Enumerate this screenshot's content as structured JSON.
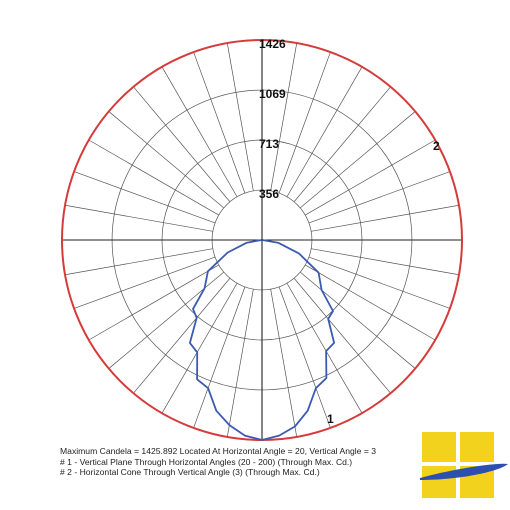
{
  "chart_data": {
    "type": "polar",
    "title": "",
    "radial_ticks": [
      356,
      713,
      1069,
      1426
    ],
    "rmax": 1426,
    "ring_tick_labels": [
      "356",
      "713",
      "1069",
      "1426"
    ],
    "angular_divisions_deg": 10,
    "series": [
      {
        "name": "1",
        "color": "#3b5bb0",
        "note": "Vertical Plane Through Horizontal Angles (20 - 200)",
        "angles_deg": [
          90,
          80,
          70,
          60,
          50,
          45,
          40,
          35,
          30,
          25,
          20,
          15,
          10,
          5,
          0,
          -5,
          -10,
          -15,
          -20,
          -25,
          -30,
          -35,
          -40,
          -45,
          -50,
          -60,
          -70,
          -80,
          -90
        ],
        "values": [
          2,
          110,
          260,
          410,
          570,
          660,
          760,
          860,
          960,
          1060,
          1160,
          1260,
          1340,
          1400,
          1426,
          1400,
          1350,
          1260,
          1160,
          1050,
          950,
          860,
          770,
          680,
          590,
          430,
          280,
          120,
          2
        ]
      },
      {
        "name": "2",
        "color": "#d63b3b",
        "note": "Horizontal Cone Through Vertical Angle (3)",
        "constant_value": 1426
      }
    ]
  },
  "footer": {
    "line1": "Maximum Candela = 1425.892   Located At Horizontal Angle = 20, Vertical Angle = 3",
    "line2": "# 1 - Vertical Plane Through Horizontal Angles (20 - 200) (Through Max. Cd.)",
    "line3": "# 2 - Horizontal Cone Through Vertical Angle (3) (Through Max. Cd.)"
  },
  "colors": {
    "grid": "#555555",
    "logo_yellow": "#f2d21c",
    "logo_blue": "#2d4fb0"
  }
}
